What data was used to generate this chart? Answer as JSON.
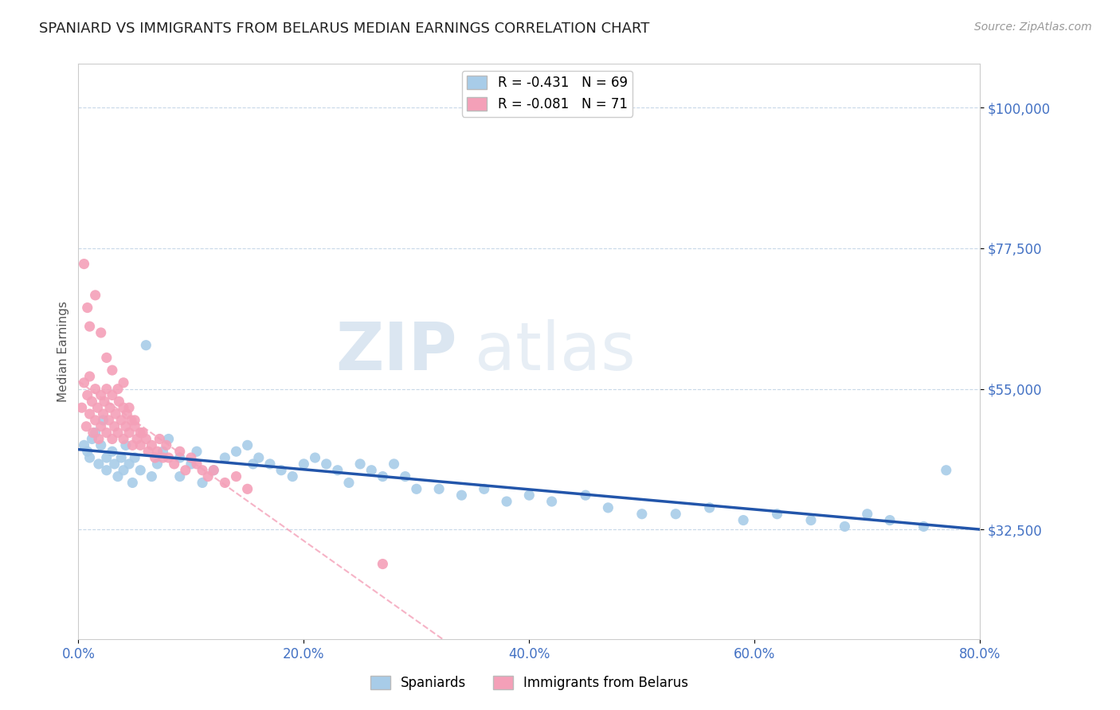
{
  "title": "SPANIARD VS IMMIGRANTS FROM BELARUS MEDIAN EARNINGS CORRELATION CHART",
  "source_text": "Source: ZipAtlas.com",
  "ylabel": "Median Earnings",
  "xlim": [
    0.0,
    0.8
  ],
  "ylim": [
    15000,
    107000
  ],
  "yticks": [
    32500,
    55000,
    77500,
    100000
  ],
  "ytick_labels": [
    "$32,500",
    "$55,000",
    "$77,500",
    "$100,000"
  ],
  "xticks": [
    0.0,
    0.2,
    0.4,
    0.6,
    0.8
  ],
  "xtick_labels": [
    "0.0%",
    "20.0%",
    "40.0%",
    "60.0%",
    "80.0%"
  ],
  "tick_color": "#4472c4",
  "grid_color": "#c8d8e8",
  "watermark": "ZIPatlas",
  "legend_entries": [
    {
      "label": "R = -0.431   N = 69",
      "color": "#a8cce8"
    },
    {
      "label": "R = -0.081   N = 71",
      "color": "#f4a0b8"
    }
  ],
  "series": [
    {
      "name": "Spaniards",
      "color": "#a8cce8",
      "line_color": "#2255aa",
      "x": [
        0.005,
        0.008,
        0.01,
        0.012,
        0.015,
        0.018,
        0.02,
        0.022,
        0.025,
        0.025,
        0.03,
        0.032,
        0.035,
        0.038,
        0.04,
        0.042,
        0.045,
        0.048,
        0.05,
        0.055,
        0.06,
        0.065,
        0.07,
        0.075,
        0.08,
        0.09,
        0.09,
        0.1,
        0.105,
        0.11,
        0.12,
        0.13,
        0.14,
        0.15,
        0.155,
        0.16,
        0.17,
        0.18,
        0.19,
        0.2,
        0.21,
        0.22,
        0.23,
        0.24,
        0.25,
        0.26,
        0.27,
        0.28,
        0.29,
        0.3,
        0.32,
        0.34,
        0.36,
        0.38,
        0.4,
        0.42,
        0.45,
        0.47,
        0.5,
        0.53,
        0.56,
        0.59,
        0.62,
        0.65,
        0.68,
        0.7,
        0.72,
        0.75,
        0.77
      ],
      "y": [
        46000,
        45000,
        44000,
        47000,
        48000,
        43000,
        46000,
        50000,
        44000,
        42000,
        45000,
        43000,
        41000,
        44000,
        42000,
        46000,
        43000,
        40000,
        44000,
        42000,
        62000,
        41000,
        43000,
        45000,
        47000,
        44000,
        41000,
        43000,
        45000,
        40000,
        42000,
        44000,
        45000,
        46000,
        43000,
        44000,
        43000,
        42000,
        41000,
        43000,
        44000,
        43000,
        42000,
        40000,
        43000,
        42000,
        41000,
        43000,
        41000,
        39000,
        39000,
        38000,
        39000,
        37000,
        38000,
        37000,
        38000,
        36000,
        35000,
        35000,
        36000,
        34000,
        35000,
        34000,
        33000,
        35000,
        34000,
        33000,
        42000
      ]
    },
    {
      "name": "Immigrants from Belarus",
      "color": "#f4a0b8",
      "line_color": "#f4a0b8",
      "x": [
        0.003,
        0.005,
        0.007,
        0.008,
        0.01,
        0.01,
        0.012,
        0.013,
        0.015,
        0.015,
        0.017,
        0.018,
        0.02,
        0.02,
        0.022,
        0.023,
        0.025,
        0.025,
        0.027,
        0.028,
        0.03,
        0.03,
        0.032,
        0.033,
        0.035,
        0.036,
        0.038,
        0.04,
        0.04,
        0.042,
        0.043,
        0.045,
        0.047,
        0.048,
        0.05,
        0.052,
        0.055,
        0.057,
        0.06,
        0.062,
        0.065,
        0.068,
        0.07,
        0.072,
        0.075,
        0.078,
        0.08,
        0.085,
        0.09,
        0.095,
        0.1,
        0.105,
        0.11,
        0.115,
        0.12,
        0.13,
        0.14,
        0.15,
        0.005,
        0.008,
        0.01,
        0.015,
        0.02,
        0.025,
        0.03,
        0.035,
        0.04,
        0.045,
        0.05,
        0.055,
        0.27
      ],
      "y": [
        52000,
        56000,
        49000,
        54000,
        51000,
        57000,
        53000,
        48000,
        55000,
        50000,
        52000,
        47000,
        54000,
        49000,
        51000,
        53000,
        48000,
        55000,
        50000,
        52000,
        47000,
        54000,
        49000,
        51000,
        48000,
        53000,
        50000,
        47000,
        52000,
        49000,
        51000,
        48000,
        50000,
        46000,
        49000,
        47000,
        46000,
        48000,
        47000,
        45000,
        46000,
        44000,
        45000,
        47000,
        44000,
        46000,
        44000,
        43000,
        45000,
        42000,
        44000,
        43000,
        42000,
        41000,
        42000,
        40000,
        41000,
        39000,
        75000,
        68000,
        65000,
        70000,
        64000,
        60000,
        58000,
        55000,
        56000,
        52000,
        50000,
        48000,
        27000
      ]
    }
  ],
  "belarus_trend_x": [
    0.0,
    0.25
  ],
  "belarus_trend_y": [
    52000,
    20000
  ],
  "background_color": "#ffffff",
  "title_fontsize": 13,
  "axis_label_fontsize": 11,
  "tick_fontsize": 12,
  "legend_fontsize": 12
}
